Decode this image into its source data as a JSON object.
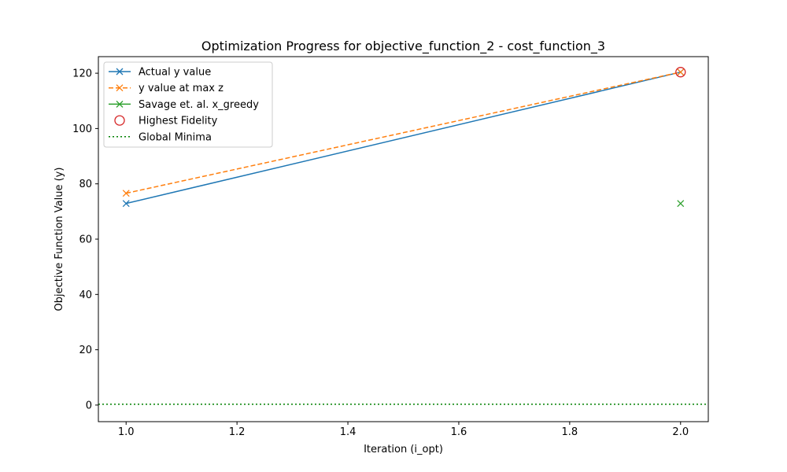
{
  "chart_data": {
    "type": "line",
    "title": "Optimization Progress for objective_function_2 - cost_function_3",
    "xlabel": "Iteration (i_opt)",
    "ylabel": "Objective Function Value (y)",
    "xlim": [
      0.95,
      2.05
    ],
    "ylim": [
      -6,
      126
    ],
    "xticks": [
      "1.0",
      "1.2",
      "1.4",
      "1.6",
      "1.8",
      "2.0"
    ],
    "yticks": [
      "0",
      "20",
      "40",
      "60",
      "80",
      "100",
      "120"
    ],
    "grid": false,
    "legend_position": "upper-left",
    "series": [
      {
        "name": "Actual y value",
        "x": [
          1,
          2
        ],
        "y": [
          72.9,
          120.4
        ],
        "color": "#1f77b4",
        "style": "solid",
        "marker": "x"
      },
      {
        "name": "y value at max z",
        "x": [
          1,
          2
        ],
        "y": [
          76.6,
          120.4
        ],
        "color": "#ff7f0e",
        "style": "dashed",
        "marker": "x"
      },
      {
        "name": "Savage et. al. x_greedy",
        "x": [
          2
        ],
        "y": [
          72.9
        ],
        "color": "#2ca02c",
        "style": "none",
        "marker": "x"
      },
      {
        "name": "Highest Fidelity",
        "x": [
          2
        ],
        "y": [
          120.4
        ],
        "color": "#d62728",
        "style": "none",
        "marker": "open-circle"
      },
      {
        "name": "Global Minima",
        "y_const": 0.3,
        "color": "#008000",
        "style": "dotted",
        "marker": "none"
      }
    ]
  }
}
